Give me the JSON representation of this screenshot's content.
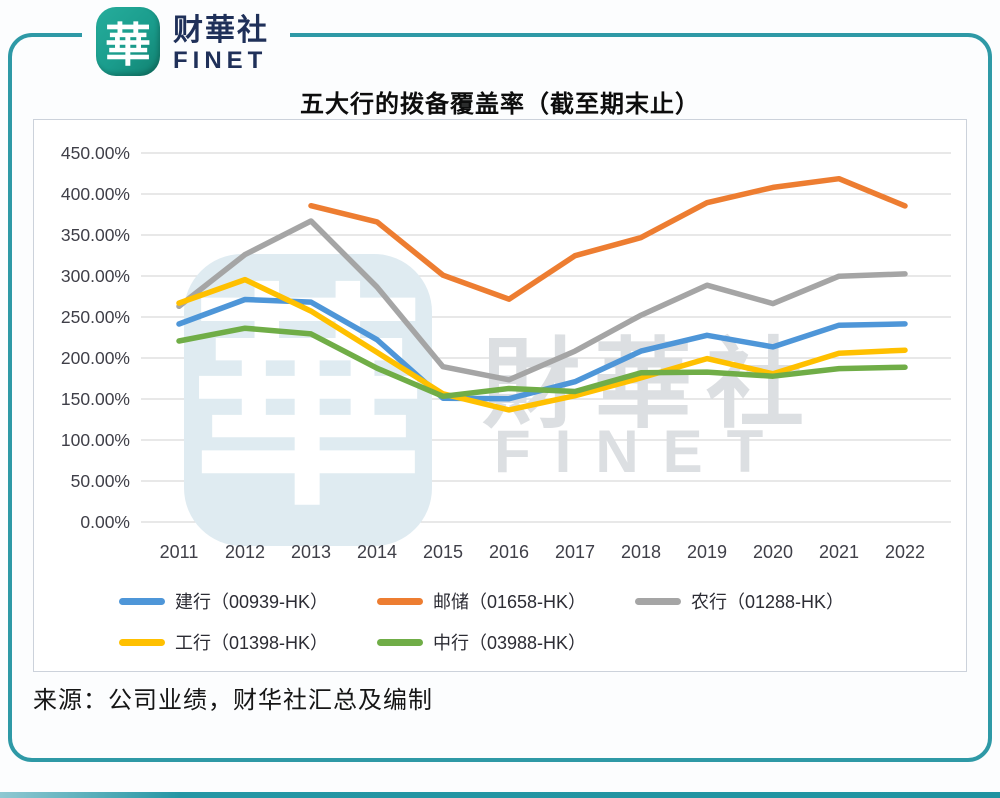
{
  "logo": {
    "mark": "華",
    "name_cn": "财華社",
    "name_en": "FINET"
  },
  "source": "来源：公司业绩，财华社汇总及编制",
  "colors": {
    "frame_teal": "#2E99A6",
    "logo_teal": "#1A9C8C",
    "brand_navy": "#1F3059",
    "gridline": "#D9D9D9",
    "axis_text": "#3F3F48",
    "watermark_blue": "#DFEBF1",
    "watermark_gray": "#DCDFE2"
  },
  "chart_data": {
    "type": "line",
    "title": "五大行的拨备覆盖率（截至期末止）",
    "xlabel": "",
    "ylabel": "",
    "x": [
      "2011",
      "2012",
      "2013",
      "2014",
      "2015",
      "2016",
      "2017",
      "2018",
      "2019",
      "2020",
      "2021",
      "2022"
    ],
    "ylim": [
      0,
      450
    ],
    "y_tick_step": 50,
    "y_tick_suffix": "%",
    "grid": true,
    "legend_position": "bottom",
    "series": [
      {
        "name": "建行（00939-HK）",
        "color": "#4E96D8",
        "values": [
          241.44,
          271.29,
          268.22,
          222.33,
          150.99,
          150.36,
          171.08,
          208.37,
          227.69,
          213.59,
          239.96,
          241.53
        ]
      },
      {
        "name": "邮储（01658-HK）",
        "color": "#ED7D31",
        "values": [
          null,
          null,
          385.68,
          365.98,
          301.0,
          271.69,
          324.77,
          346.8,
          389.45,
          408.06,
          418.61,
          385.51
        ]
      },
      {
        "name": "农行（01288-HK）",
        "color": "#A5A5A5",
        "values": [
          263.1,
          326.14,
          367.04,
          286.53,
          189.43,
          173.4,
          208.37,
          252.18,
          288.75,
          266.4,
          299.73,
          302.6
        ]
      },
      {
        "name": "工行（01398-HK）",
        "color": "#FFC000",
        "values": [
          266.92,
          295.55,
          257.19,
          206.9,
          156.34,
          136.69,
          154.07,
          175.76,
          199.32,
          180.68,
          205.84,
          209.47
        ]
      },
      {
        "name": "中行（03988-HK）",
        "color": "#70AD47",
        "values": [
          220.75,
          236.3,
          229.35,
          187.6,
          153.3,
          162.82,
          159.18,
          181.97,
          182.86,
          177.84,
          187.05,
          188.73
        ]
      }
    ],
    "watermark": {
      "mark": "華",
      "text_cn": "財華社",
      "text_en": "FINET"
    }
  }
}
